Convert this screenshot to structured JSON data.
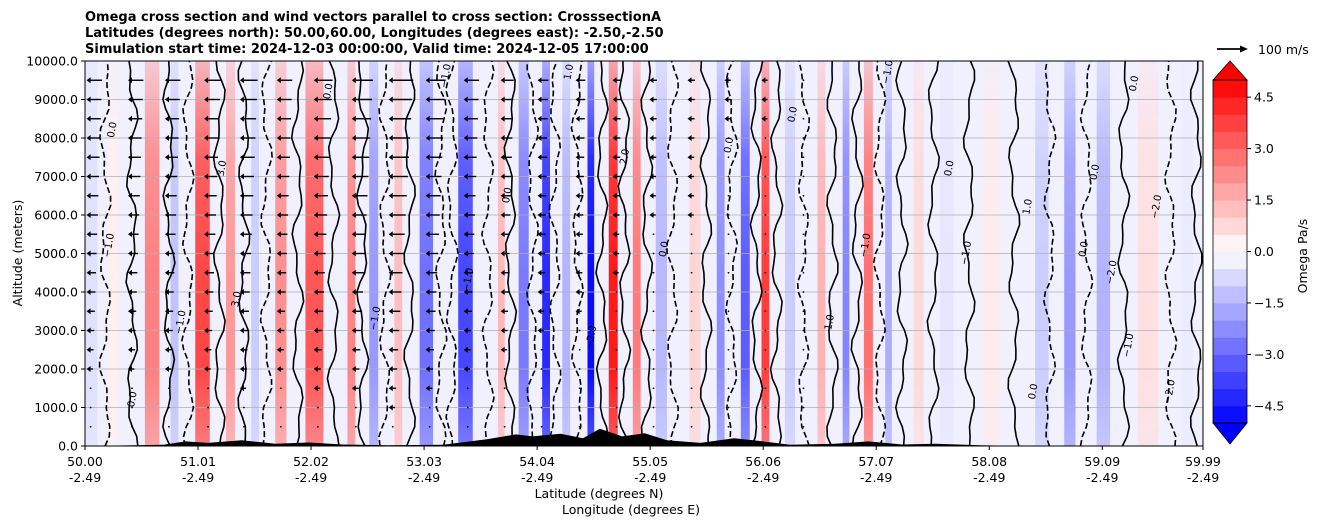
{
  "chart_data": {
    "type": "heatmap",
    "title_lines": [
      "Omega cross section and wind vectors parallel to cross section: CrosssectionA",
      "Latitudes (degrees north): 50.00,60.00, Longitudes (degrees east): -2.50,-2.50",
      "Simulation start time: 2024-12-03 00:00:00, Valid time: 2024-12-05 17:00:00"
    ],
    "xlabel_lines": [
      "Latitude (degrees N)",
      "Longitude (degrees E)"
    ],
    "ylabel": "Altitude (meters)",
    "xlim": [
      50.0,
      59.99
    ],
    "ylim": [
      0,
      10000
    ],
    "x_ticks": [
      {
        "lat": "50.00",
        "lon": "-2.49",
        "v": 50.0
      },
      {
        "lat": "51.01",
        "lon": "-2.49",
        "v": 51.01
      },
      {
        "lat": "52.02",
        "lon": "-2.49",
        "v": 52.02
      },
      {
        "lat": "53.03",
        "lon": "-2.49",
        "v": 53.03
      },
      {
        "lat": "54.04",
        "lon": "-2.49",
        "v": 54.04
      },
      {
        "lat": "55.05",
        "lon": "-2.49",
        "v": 55.05
      },
      {
        "lat": "56.06",
        "lon": "-2.49",
        "v": 56.06
      },
      {
        "lat": "57.07",
        "lon": "-2.49",
        "v": 57.07
      },
      {
        "lat": "58.08",
        "lon": "-2.49",
        "v": 58.08
      },
      {
        "lat": "59.09",
        "lon": "-2.49",
        "v": 59.09
      },
      {
        "lat": "59.99",
        "lon": "-2.49",
        "v": 59.99
      }
    ],
    "y_ticks": [
      {
        "label": "0.0",
        "v": 0
      },
      {
        "label": "1000.0",
        "v": 1000
      },
      {
        "label": "2000.0",
        "v": 2000
      },
      {
        "label": "3000.0",
        "v": 3000
      },
      {
        "label": "4000.0",
        "v": 4000
      },
      {
        "label": "5000.0",
        "v": 5000
      },
      {
        "label": "6000.0",
        "v": 6000
      },
      {
        "label": "7000.0",
        "v": 7000
      },
      {
        "label": "8000.0",
        "v": 8000
      },
      {
        "label": "9000.0",
        "v": 9000
      },
      {
        "label": "10000.0",
        "v": 10000
      }
    ],
    "grid": "horizontal",
    "colorbar": {
      "label": "Omega Pa/s",
      "range": [
        -5,
        5
      ],
      "ticks": [
        {
          "label": "4.5",
          "v": 4.5
        },
        {
          "label": "3.0",
          "v": 3.0
        },
        {
          "label": "1.5",
          "v": 1.5
        },
        {
          "label": "0.0",
          "v": 0.0
        },
        {
          "label": "−1.5",
          "v": -1.5
        },
        {
          "label": "−3.0",
          "v": -3.0
        },
        {
          "label": "−4.5",
          "v": -4.5
        }
      ],
      "colors": {
        "negative": "#0000ff",
        "positive": "#ff0000",
        "neutral": "#ffffff"
      }
    },
    "quiver_key": {
      "label": "100 m/s"
    },
    "omega_bands": [
      {
        "x": 50.05,
        "w": 0.12,
        "omega": -0.6
      },
      {
        "x": 50.25,
        "w": 0.1,
        "omega": 0.3
      },
      {
        "x": 50.6,
        "w": 0.13,
        "omega": 2.5
      },
      {
        "x": 50.8,
        "w": 0.07,
        "omega": -1.2
      },
      {
        "x": 51.05,
        "w": 0.13,
        "omega": 3.6
      },
      {
        "x": 51.3,
        "w": 0.08,
        "omega": 2.0
      },
      {
        "x": 51.52,
        "w": 0.07,
        "omega": -1.0
      },
      {
        "x": 51.75,
        "w": 0.1,
        "omega": 2.2
      },
      {
        "x": 52.05,
        "w": 0.16,
        "omega": 3.3
      },
      {
        "x": 52.38,
        "w": 0.07,
        "omega": 2.4
      },
      {
        "x": 52.58,
        "w": 0.08,
        "omega": -2.0
      },
      {
        "x": 52.8,
        "w": 0.07,
        "omega": 1.3
      },
      {
        "x": 53.05,
        "w": 0.12,
        "omega": -2.8
      },
      {
        "x": 53.4,
        "w": 0.13,
        "omega": -3.6
      },
      {
        "x": 53.72,
        "w": 0.06,
        "omega": 1.4
      },
      {
        "x": 53.92,
        "w": 0.09,
        "omega": -2.6
      },
      {
        "x": 54.12,
        "w": 0.07,
        "omega": -4.2
      },
      {
        "x": 54.3,
        "w": 0.07,
        "omega": -1.5
      },
      {
        "x": 54.52,
        "w": 0.06,
        "omega": -4.8
      },
      {
        "x": 54.72,
        "w": 0.08,
        "omega": 4.5
      },
      {
        "x": 54.93,
        "w": 0.07,
        "omega": 2.6
      },
      {
        "x": 55.15,
        "w": 0.1,
        "omega": -1.4
      },
      {
        "x": 55.45,
        "w": 0.1,
        "omega": 0.8
      },
      {
        "x": 55.68,
        "w": 0.07,
        "omega": -2.2
      },
      {
        "x": 55.9,
        "w": 0.08,
        "omega": -3.2
      },
      {
        "x": 56.08,
        "w": 0.07,
        "omega": 3.8
      },
      {
        "x": 56.3,
        "w": 0.09,
        "omega": -1.0
      },
      {
        "x": 56.58,
        "w": 0.07,
        "omega": 1.5
      },
      {
        "x": 56.8,
        "w": 0.06,
        "omega": -2.4
      },
      {
        "x": 57.0,
        "w": 0.08,
        "omega": 2.8
      },
      {
        "x": 57.18,
        "w": 0.06,
        "omega": -1.6
      },
      {
        "x": 57.45,
        "w": 0.09,
        "omega": 0.7
      },
      {
        "x": 57.7,
        "w": 0.12,
        "omega": -0.5
      },
      {
        "x": 58.1,
        "w": 0.15,
        "omega": 0.4
      },
      {
        "x": 58.55,
        "w": 0.12,
        "omega": -1.0
      },
      {
        "x": 58.8,
        "w": 0.1,
        "omega": -2.0
      },
      {
        "x": 59.1,
        "w": 0.12,
        "omega": -1.5
      },
      {
        "x": 59.5,
        "w": 0.18,
        "omega": 0.6
      },
      {
        "x": 59.85,
        "w": 0.1,
        "omega": -0.4
      }
    ],
    "terrain": [
      {
        "x": 50.0,
        "h": 0
      },
      {
        "x": 50.7,
        "h": 30
      },
      {
        "x": 50.9,
        "h": 120
      },
      {
        "x": 51.1,
        "h": 80
      },
      {
        "x": 51.4,
        "h": 150
      },
      {
        "x": 51.7,
        "h": 60
      },
      {
        "x": 52.0,
        "h": 90
      },
      {
        "x": 52.3,
        "h": 40
      },
      {
        "x": 52.7,
        "h": 20
      },
      {
        "x": 53.2,
        "h": 30
      },
      {
        "x": 53.6,
        "h": 180
      },
      {
        "x": 53.85,
        "h": 300
      },
      {
        "x": 54.0,
        "h": 250
      },
      {
        "x": 54.25,
        "h": 320
      },
      {
        "x": 54.45,
        "h": 200
      },
      {
        "x": 54.6,
        "h": 450
      },
      {
        "x": 54.8,
        "h": 250
      },
      {
        "x": 55.0,
        "h": 330
      },
      {
        "x": 55.2,
        "h": 150
      },
      {
        "x": 55.5,
        "h": 80
      },
      {
        "x": 55.8,
        "h": 200
      },
      {
        "x": 56.0,
        "h": 140
      },
      {
        "x": 56.3,
        "h": 30
      },
      {
        "x": 56.7,
        "h": 60
      },
      {
        "x": 57.0,
        "h": 120
      },
      {
        "x": 57.3,
        "h": 40
      },
      {
        "x": 57.6,
        "h": 60
      },
      {
        "x": 58.0,
        "h": 20
      },
      {
        "x": 58.4,
        "h": 0
      },
      {
        "x": 59.99,
        "h": 0
      }
    ],
    "contour_lines": [
      {
        "x": 50.18,
        "style": "dashed"
      },
      {
        "x": 50.42,
        "style": "solid"
      },
      {
        "x": 50.75,
        "style": "solid"
      },
      {
        "x": 50.92,
        "style": "dashed"
      },
      {
        "x": 51.2,
        "style": "solid"
      },
      {
        "x": 51.42,
        "style": "solid"
      },
      {
        "x": 51.62,
        "style": "dashed"
      },
      {
        "x": 51.9,
        "style": "solid"
      },
      {
        "x": 52.22,
        "style": "solid"
      },
      {
        "x": 52.48,
        "style": "solid"
      },
      {
        "x": 52.68,
        "style": "dashed"
      },
      {
        "x": 52.9,
        "style": "solid"
      },
      {
        "x": 53.18,
        "style": "dashed"
      },
      {
        "x": 53.28,
        "style": "dashed"
      },
      {
        "x": 53.6,
        "style": "dashed"
      },
      {
        "x": 53.8,
        "style": "solid"
      },
      {
        "x": 54.0,
        "style": "dashed"
      },
      {
        "x": 54.2,
        "style": "dashed"
      },
      {
        "x": 54.4,
        "style": "dashed"
      },
      {
        "x": 54.62,
        "style": "solid"
      },
      {
        "x": 54.82,
        "style": "solid"
      },
      {
        "x": 55.02,
        "style": "solid"
      },
      {
        "x": 55.25,
        "style": "dashed"
      },
      {
        "x": 55.55,
        "style": "solid"
      },
      {
        "x": 55.78,
        "style": "dashed"
      },
      {
        "x": 56.0,
        "style": "solid"
      },
      {
        "x": 56.18,
        "style": "solid"
      },
      {
        "x": 56.42,
        "style": "dashed"
      },
      {
        "x": 56.68,
        "style": "solid"
      },
      {
        "x": 56.9,
        "style": "solid"
      },
      {
        "x": 57.1,
        "style": "dashed"
      },
      {
        "x": 57.3,
        "style": "solid"
      },
      {
        "x": 57.58,
        "style": "solid"
      },
      {
        "x": 57.9,
        "style": "solid"
      },
      {
        "x": 58.3,
        "style": "solid"
      },
      {
        "x": 58.62,
        "style": "dashed"
      },
      {
        "x": 58.95,
        "style": "dashed"
      },
      {
        "x": 59.28,
        "style": "solid"
      },
      {
        "x": 59.7,
        "style": "dashed"
      },
      {
        "x": 59.93,
        "style": "solid"
      }
    ],
    "contour_labels": [
      {
        "x": 50.27,
        "y": 8200,
        "text": "0.0"
      },
      {
        "x": 50.24,
        "y": 5200,
        "text": "−1.0"
      },
      {
        "x": 50.45,
        "y": 1200,
        "text": "0.0"
      },
      {
        "x": 50.88,
        "y": 3200,
        "text": "−1.0"
      },
      {
        "x": 51.25,
        "y": 7200,
        "text": "3.0"
      },
      {
        "x": 51.38,
        "y": 3800,
        "text": "3.0"
      },
      {
        "x": 52.2,
        "y": 9200,
        "text": "0.0"
      },
      {
        "x": 52.62,
        "y": 3300,
        "text": "−1.0"
      },
      {
        "x": 53.25,
        "y": 9600,
        "text": "−1.0"
      },
      {
        "x": 53.45,
        "y": 4300,
        "text": "−1.0"
      },
      {
        "x": 53.8,
        "y": 6500,
        "text": "0.0"
      },
      {
        "x": 54.35,
        "y": 9700,
        "text": "1.0"
      },
      {
        "x": 54.55,
        "y": 2800,
        "text": "−2.0"
      },
      {
        "x": 54.85,
        "y": 7500,
        "text": "2.0"
      },
      {
        "x": 55.2,
        "y": 5100,
        "text": "0.0"
      },
      {
        "x": 55.78,
        "y": 7800,
        "text": "0.0"
      },
      {
        "x": 56.35,
        "y": 8600,
        "text": "0.0"
      },
      {
        "x": 56.68,
        "y": 3200,
        "text": "1.0"
      },
      {
        "x": 57.0,
        "y": 5200,
        "text": "−1.0"
      },
      {
        "x": 57.2,
        "y": 9700,
        "text": "−1.0"
      },
      {
        "x": 57.75,
        "y": 7200,
        "text": "0.0"
      },
      {
        "x": 57.9,
        "y": 5000,
        "text": "−1.0"
      },
      {
        "x": 58.45,
        "y": 6200,
        "text": "1.0"
      },
      {
        "x": 58.5,
        "y": 1400,
        "text": "0.0"
      },
      {
        "x": 58.95,
        "y": 5100,
        "text": "0.0"
      },
      {
        "x": 59.05,
        "y": 7100,
        "text": "0.0"
      },
      {
        "x": 59.2,
        "y": 4500,
        "text": "−2.0"
      },
      {
        "x": 59.35,
        "y": 2600,
        "text": "−1.0"
      },
      {
        "x": 59.4,
        "y": 9400,
        "text": "0.0"
      },
      {
        "x": 59.6,
        "y": 6200,
        "text": "−2.0"
      },
      {
        "x": 59.72,
        "y": 1400,
        "text": "−2.0"
      }
    ],
    "wind_arrows": [
      {
        "x": 50.05,
        "wmin": 1.0
      },
      {
        "x": 50.42,
        "wmin": 1.0
      },
      {
        "x": 50.75,
        "wmin": 1.0
      },
      {
        "x": 51.1,
        "wmin": 1.1
      },
      {
        "x": 51.42,
        "wmin": 1.2
      },
      {
        "x": 51.75,
        "wmin": 1.0
      },
      {
        "x": 52.08,
        "wmin": 1.3
      },
      {
        "x": 52.42,
        "wmin": 1.5
      },
      {
        "x": 52.75,
        "wmin": 1.8
      },
      {
        "x": 53.08,
        "wmin": 1.4
      },
      {
        "x": 53.42,
        "wmin": 1.0
      },
      {
        "x": 53.75,
        "wmin": 0.8
      },
      {
        "x": 54.08,
        "wmin": 0.6
      },
      {
        "x": 54.42,
        "wmin": 0.5
      },
      {
        "x": 54.75,
        "wmin": 0.4
      },
      {
        "x": 55.08,
        "wmin": 0.3
      },
      {
        "x": 55.42,
        "wmin": 0.3
      },
      {
        "x": 55.75,
        "wmin": 0.2
      },
      {
        "x": 56.08,
        "wmin": 0.2
      },
      {
        "x": 56.42,
        "wmin": 0.1
      }
    ]
  }
}
